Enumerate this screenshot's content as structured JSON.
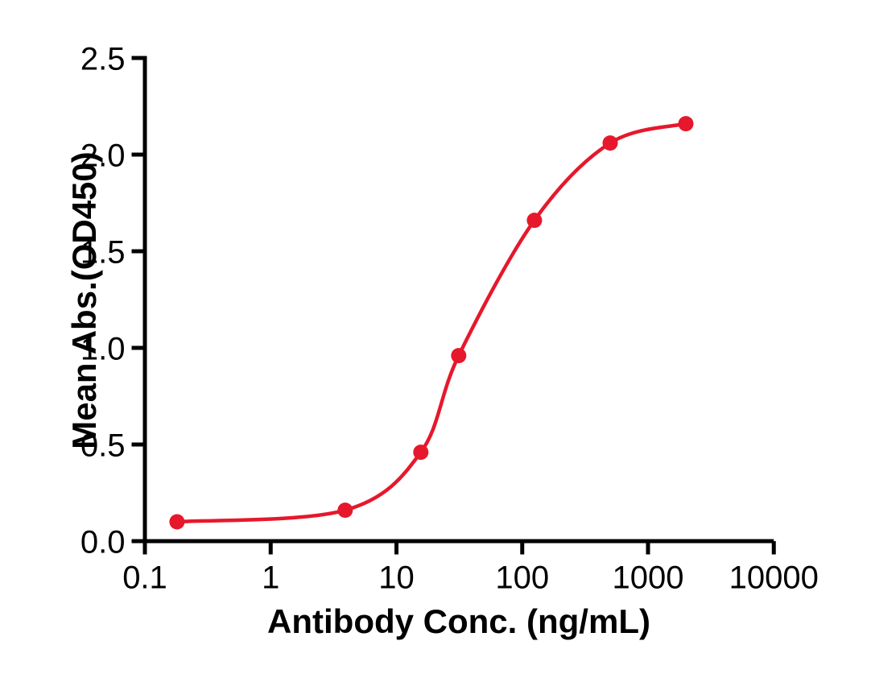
{
  "figure": {
    "background_color": "#ffffff",
    "axis_color": "#000000",
    "accent_color": "#e6182c"
  },
  "chart_data": {
    "type": "scatter",
    "subtype": "dose-response sigmoidal fit (4PL), log10 x scale",
    "title": "",
    "xlabel": "Antibody Conc. (ng/mL)",
    "ylabel": "Mean Abs.(OD450)",
    "x_scale": "log10",
    "xlim": [
      0.1,
      10000
    ],
    "ylim": [
      0.0,
      2.5
    ],
    "x_ticks": [
      0.1,
      1,
      10,
      100,
      1000,
      10000
    ],
    "x_tick_labels": [
      "0.1",
      "1",
      "10",
      "100",
      "1000",
      "10000"
    ],
    "y_ticks": [
      0.0,
      0.5,
      1.0,
      1.5,
      2.0,
      2.5
    ],
    "y_tick_labels": [
      "0.0",
      "0.5",
      "1.0",
      "1.5",
      "2.0",
      "2.5"
    ],
    "grid": false,
    "legend": "none",
    "series": [
      {
        "name": "Mean Abs.(OD450)",
        "color": "#e6182c",
        "marker": "circle",
        "line": "smooth sigmoidal fit through points",
        "x": [
          0.18,
          3.91,
          15.63,
          31.25,
          125,
          500,
          2000
        ],
        "y": [
          0.1,
          0.16,
          0.46,
          0.96,
          1.66,
          2.06,
          2.16
        ]
      }
    ]
  }
}
